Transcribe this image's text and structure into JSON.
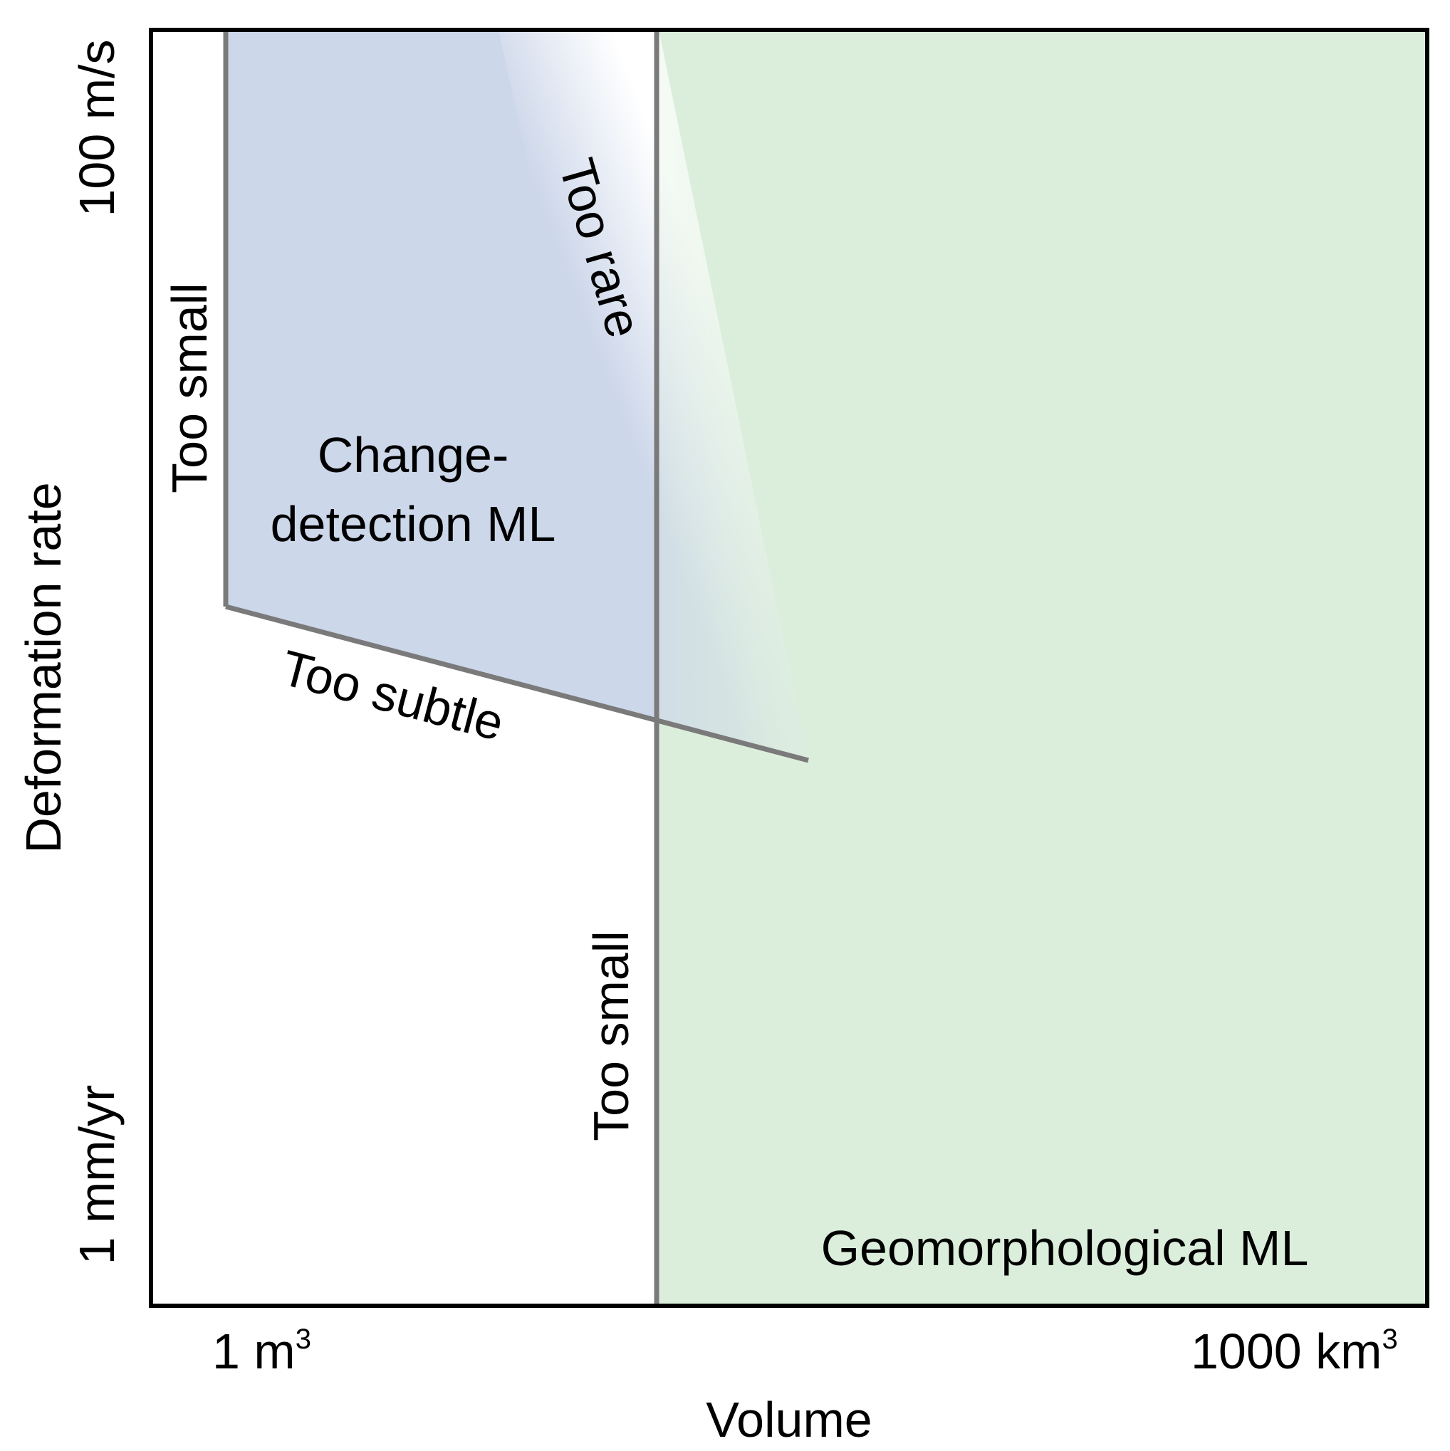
{
  "axes": {
    "x_title": "Volume",
    "x_tick_left": "1 m",
    "x_tick_left_sup": "3",
    "x_tick_right": "1000 km",
    "x_tick_right_sup": "3",
    "y_title": "Deformation rate",
    "y_tick_top": "100 m/s",
    "y_tick_bottom": "1 mm/yr"
  },
  "regions": {
    "change_detection": {
      "label_line1": "Change-",
      "label_line2": "detection ML",
      "color": "#cdd7ea"
    },
    "geomorphological": {
      "label": "Geomorphological ML",
      "color": "#dbeedb"
    }
  },
  "boundary_labels": {
    "too_small_left": "Too small",
    "too_rare": "Too rare",
    "too_subtle": "Too subtle",
    "too_small_center": "Too small"
  },
  "colors": {
    "frame": "#000000",
    "boundary_line": "#7a7a7a",
    "background": "#ffffff"
  }
}
